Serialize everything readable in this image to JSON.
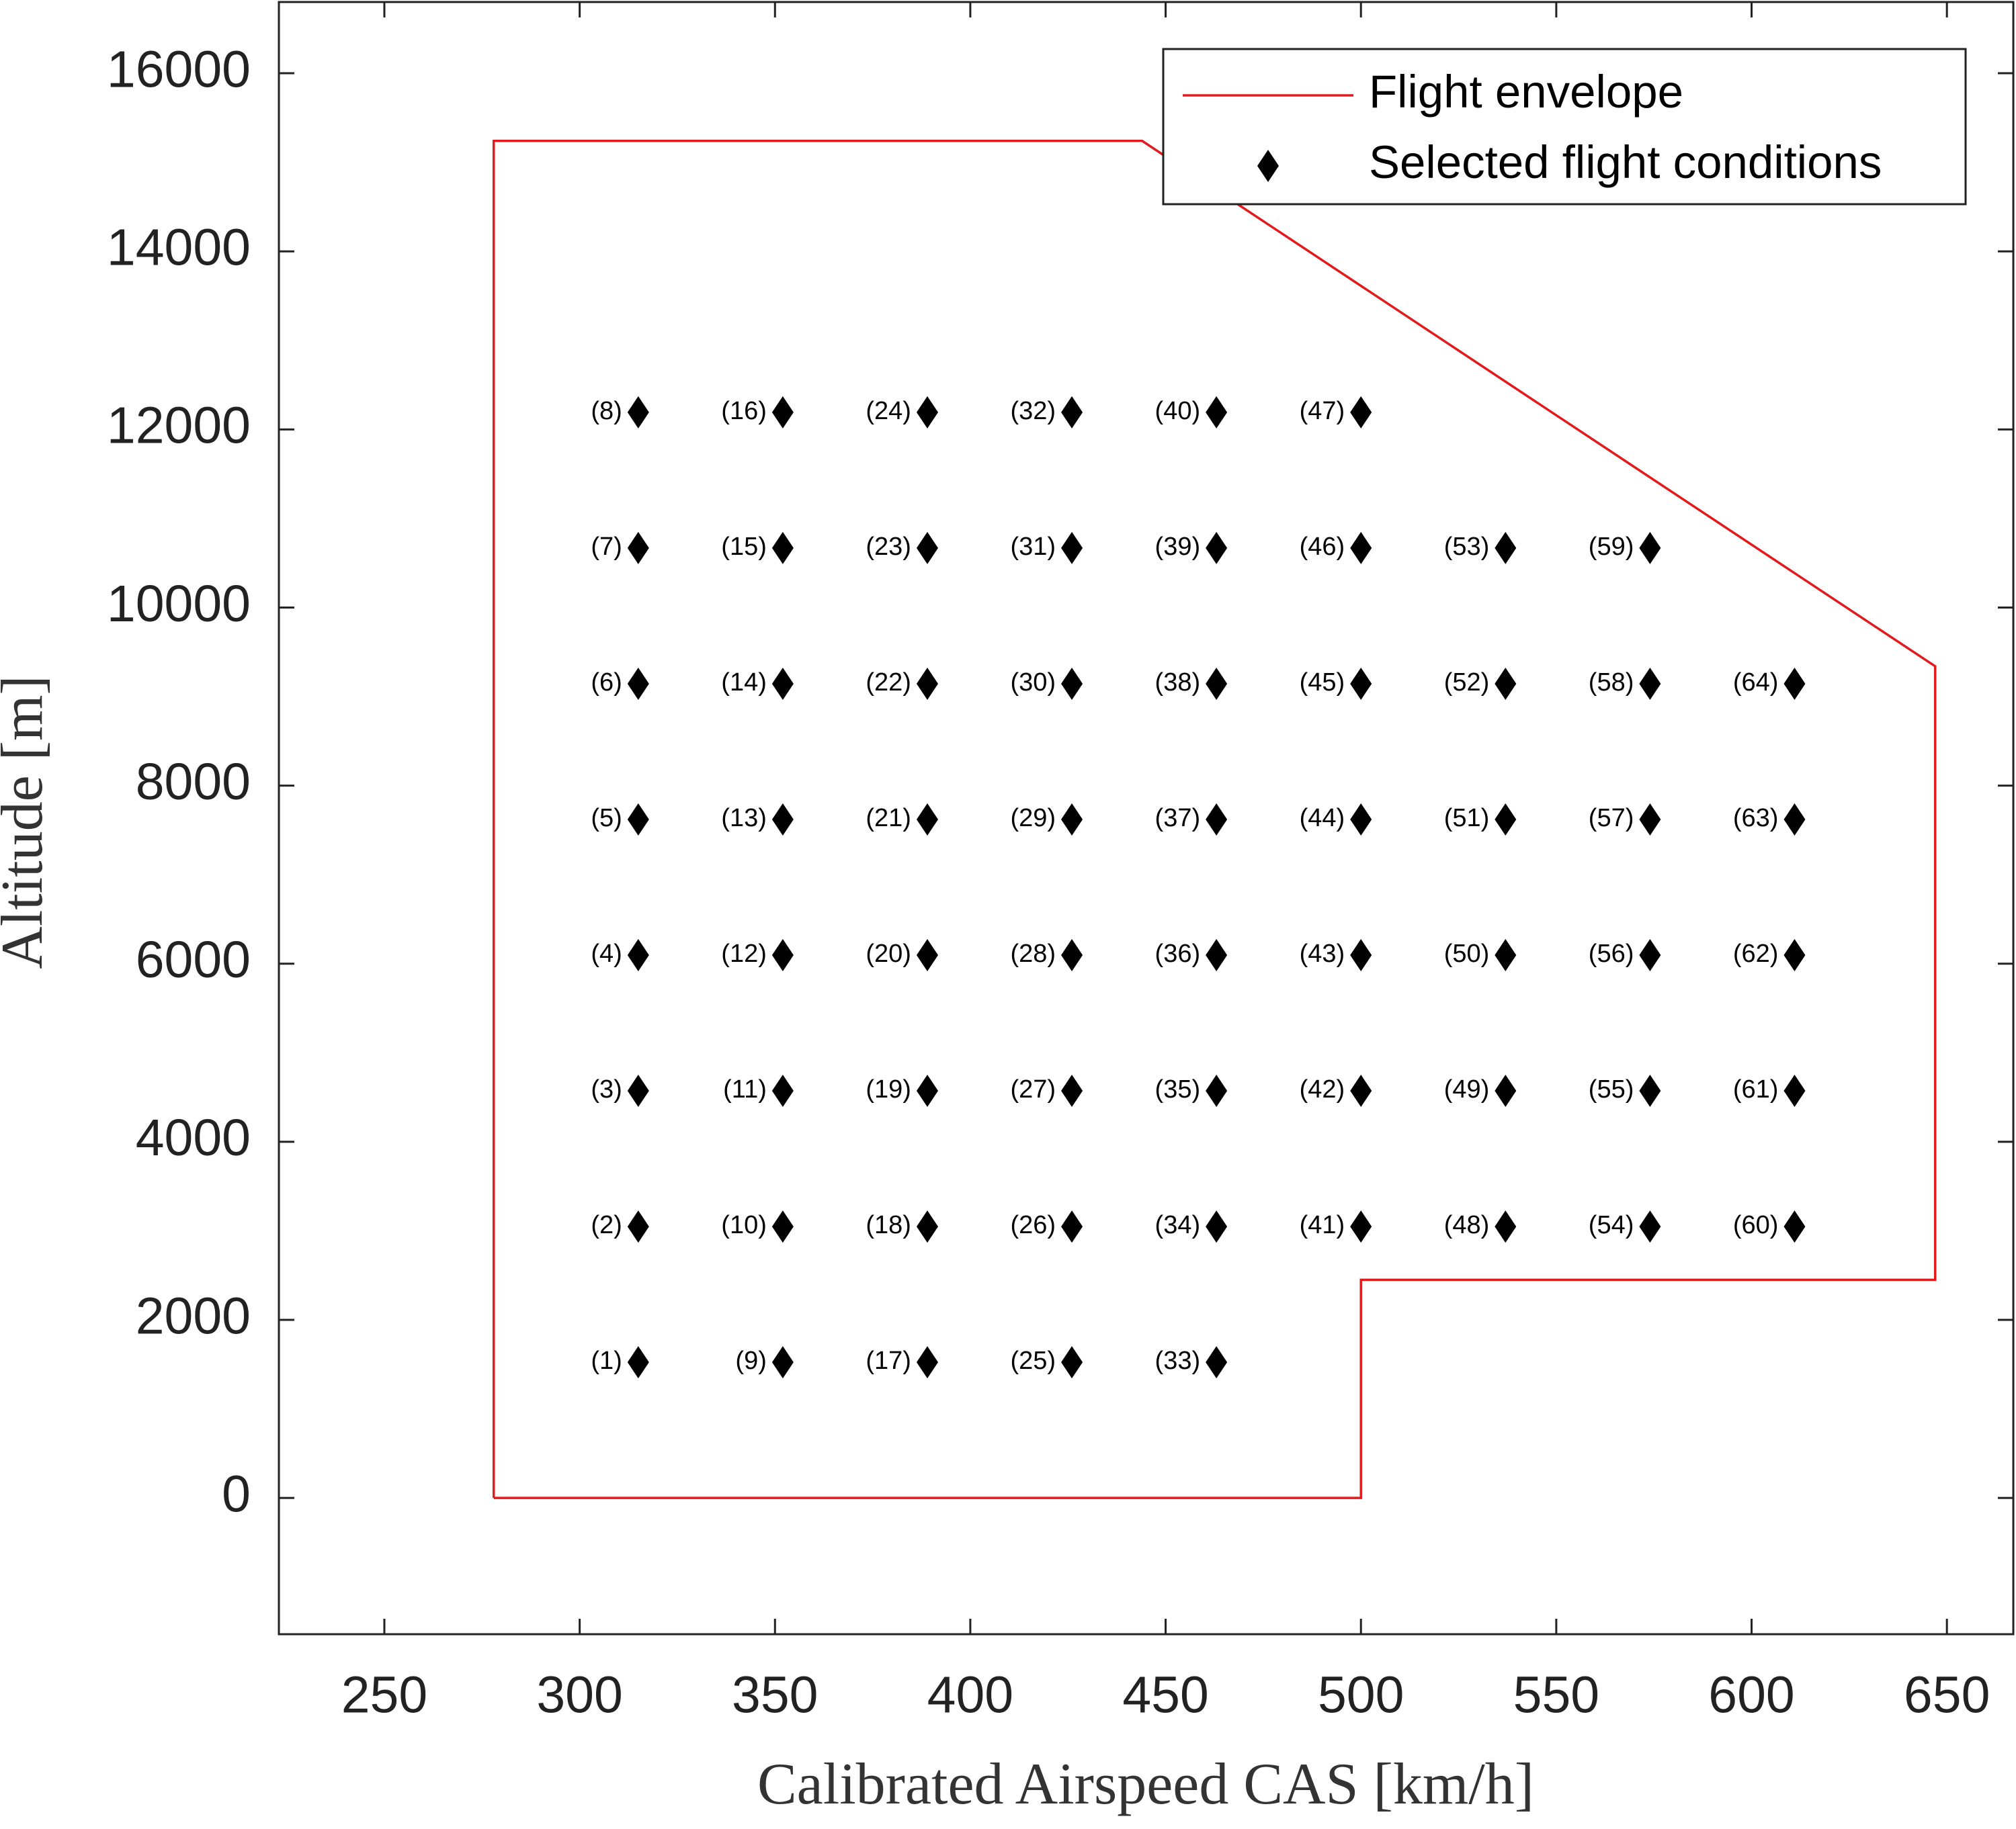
{
  "chart_data": {
    "type": "scatter",
    "xlabel": "Calibrated Airspeed CAS [km/h]",
    "ylabel": "Altitude [m]",
    "xlim": [
      223,
      667
    ],
    "ylim": [
      -1530,
      16800
    ],
    "xticks": [
      250,
      300,
      350,
      400,
      450,
      500,
      550,
      600,
      650
    ],
    "yticks": [
      0,
      2000,
      4000,
      6000,
      8000,
      10000,
      12000,
      14000,
      16000
    ],
    "legend": "upper right",
    "series": [
      {
        "name": "Flight envelope",
        "type": "line",
        "color": "#e31a1c",
        "x": [
          278,
          278,
          444,
          647,
          647,
          500,
          500,
          278
        ],
        "y": [
          0,
          15240,
          15240,
          9340,
          2450,
          2450,
          0,
          0
        ]
      },
      {
        "name": "Selected flight conditions",
        "type": "scatter",
        "color": "#000000",
        "marker": "diamond",
        "x": [
          315,
          315,
          315,
          315,
          315,
          315,
          315,
          315,
          352,
          352,
          352,
          352,
          352,
          352,
          352,
          352,
          389,
          389,
          389,
          389,
          389,
          389,
          389,
          389,
          426,
          426,
          426,
          426,
          426,
          426,
          426,
          426,
          463,
          463,
          463,
          463,
          463,
          463,
          463,
          463,
          500,
          500,
          500,
          500,
          500,
          500,
          500,
          537,
          537,
          537,
          537,
          537,
          537,
          574,
          574,
          574,
          574,
          574,
          574,
          611,
          611,
          611,
          611,
          611
        ],
        "y": [
          1524,
          3048,
          4572,
          6096,
          7620,
          9144,
          10668,
          12192,
          1524,
          3048,
          4572,
          6096,
          7620,
          9144,
          10668,
          12192,
          1524,
          3048,
          4572,
          6096,
          7620,
          9144,
          10668,
          12192,
          1524,
          3048,
          4572,
          6096,
          7620,
          9144,
          10668,
          12192,
          1524,
          3048,
          4572,
          6096,
          7620,
          9144,
          10668,
          12192,
          3048,
          4572,
          6096,
          7620,
          9144,
          10668,
          12192,
          3048,
          4572,
          6096,
          7620,
          9144,
          10668,
          3048,
          4572,
          6096,
          7620,
          9144,
          10668,
          3048,
          4572,
          6096,
          7620,
          9144
        ],
        "labels": [
          "(1)",
          "(2)",
          "(3)",
          "(4)",
          "(5)",
          "(6)",
          "(7)",
          "(8)",
          "(9)",
          "(10)",
          "(11)",
          "(12)",
          "(13)",
          "(14)",
          "(15)",
          "(16)",
          "(17)",
          "(18)",
          "(19)",
          "(20)",
          "(21)",
          "(22)",
          "(23)",
          "(24)",
          "(25)",
          "(26)",
          "(27)",
          "(28)",
          "(29)",
          "(30)",
          "(31)",
          "(32)",
          "(33)",
          "(34)",
          "(35)",
          "(36)",
          "(37)",
          "(38)",
          "(39)",
          "(40)",
          "(41)",
          "(42)",
          "(43)",
          "(44)",
          "(45)",
          "(46)",
          "(47)",
          "(48)",
          "(49)",
          "(50)",
          "(51)",
          "(52)",
          "(53)",
          "(54)",
          "(55)",
          "(56)",
          "(57)",
          "(58)",
          "(59)",
          "(60)",
          "(61)",
          "(62)",
          "(63)",
          "(64)"
        ]
      }
    ]
  }
}
